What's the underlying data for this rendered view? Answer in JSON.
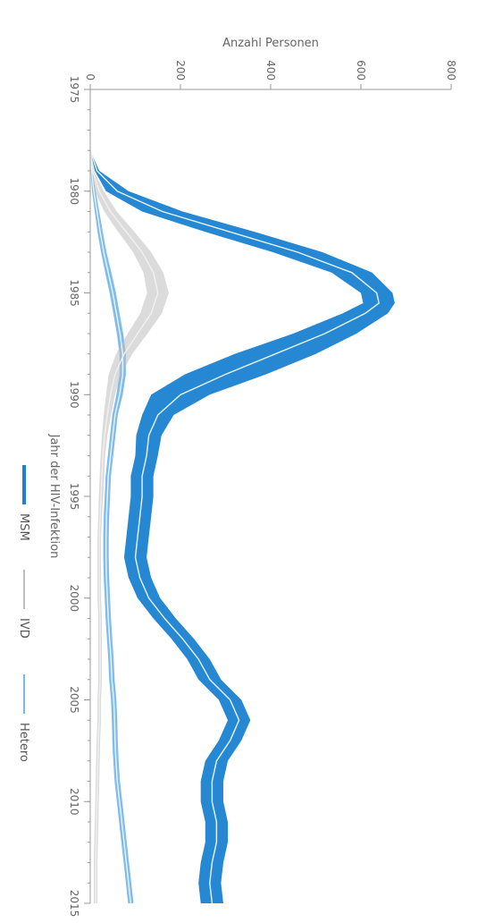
{
  "chart_data": {
    "type": "line",
    "orientation": "rotated-90",
    "xlabel": "Jahr der HIV-Infektion",
    "ylabel": "Anzahl Personen",
    "xlim": [
      1975,
      2015
    ],
    "ylim": [
      0,
      800
    ],
    "x_ticks": [
      "1975",
      "1980",
      "1985",
      "1990",
      "1995",
      "2000",
      "2005",
      "2010",
      "2015"
    ],
    "y_ticks": [
      "0",
      "200",
      "400",
      "600",
      "800"
    ],
    "colors": {
      "MSM": "#1a82d1",
      "IVD": "#bdbdbd",
      "Hetero": "#7ab8ea"
    },
    "series": [
      {
        "name": "MSM",
        "x": [
          1978,
          1979,
          1980,
          1981,
          1982,
          1983,
          1984,
          1985,
          1985.5,
          1986,
          1987,
          1988,
          1989,
          1990,
          1991,
          1992,
          1993,
          1994,
          1995,
          1996,
          1997,
          1998,
          1999,
          2000,
          2001,
          2002,
          2003,
          2004,
          2005,
          2006,
          2007,
          2008,
          2009,
          2010,
          2011,
          2012,
          2013,
          2014,
          2015
        ],
        "y": [
          0,
          15,
          60,
          160,
          310,
          460,
          580,
          635,
          640,
          610,
          520,
          410,
          300,
          200,
          150,
          130,
          125,
          115,
          115,
          110,
          105,
          100,
          110,
          130,
          165,
          205,
          240,
          265,
          310,
          330,
          310,
          280,
          270,
          270,
          280,
          280,
          270,
          265,
          270
        ],
        "band": [
          0,
          5,
          25,
          45,
          55,
          55,
          45,
          35,
          35,
          50,
          70,
          90,
          90,
          65,
          35,
          28,
          25,
          25,
          25,
          25,
          25,
          25,
          25,
          25,
          25,
          25,
          25,
          25,
          25,
          25,
          25,
          25,
          25,
          25,
          25,
          25,
          25,
          25,
          25
        ]
      },
      {
        "name": "IVD",
        "x": [
          1978,
          1979,
          1980,
          1981,
          1982,
          1983,
          1984,
          1985,
          1986,
          1987,
          1988,
          1989,
          1990,
          1991,
          1992,
          1993,
          1994,
          1995,
          1996,
          1997,
          1998,
          1999,
          2000,
          2001,
          2002,
          2003,
          2004,
          2005,
          2006,
          2007,
          2008,
          2009,
          2010,
          2011,
          2012,
          2013,
          2014,
          2015
        ],
        "y": [
          0,
          5,
          20,
          45,
          80,
          115,
          140,
          150,
          135,
          105,
          75,
          55,
          45,
          38,
          32,
          28,
          26,
          24,
          22,
          20,
          20,
          20,
          20,
          22,
          22,
          22,
          22,
          20,
          20,
          18,
          17,
          16,
          15,
          14,
          13,
          12,
          12,
          12
        ],
        "band": [
          0,
          3,
          10,
          14,
          18,
          20,
          22,
          24,
          24,
          22,
          18,
          14,
          10,
          8,
          6,
          5,
          5,
          5,
          4,
          4,
          4,
          4,
          4,
          4,
          4,
          4,
          4,
          4,
          4,
          4,
          4,
          4,
          4,
          4,
          4,
          4,
          4,
          4
        ]
      },
      {
        "name": "Hetero",
        "x": [
          1978,
          1979,
          1980,
          1981,
          1982,
          1983,
          1984,
          1985,
          1986,
          1987,
          1988,
          1989,
          1990,
          1991,
          1992,
          1993,
          1994,
          1995,
          1996,
          1997,
          1998,
          1999,
          2000,
          2001,
          2002,
          2003,
          2004,
          2005,
          2006,
          2007,
          2008,
          2009,
          2010,
          2011,
          2012,
          2013,
          2014,
          2015
        ],
        "y": [
          0,
          3,
          8,
          15,
          22,
          30,
          40,
          50,
          58,
          66,
          72,
          72,
          65,
          55,
          50,
          45,
          40,
          38,
          36,
          35,
          35,
          36,
          38,
          40,
          43,
          46,
          48,
          52,
          54,
          55,
          57,
          60,
          65,
          70,
          75,
          80,
          85,
          90
        ],
        "band": [
          0,
          2,
          4,
          5,
          6,
          6,
          7,
          7,
          7,
          7,
          7,
          7,
          7,
          6,
          6,
          6,
          6,
          6,
          6,
          6,
          6,
          6,
          6,
          6,
          6,
          6,
          6,
          6,
          6,
          6,
          6,
          6,
          6,
          6,
          6,
          6,
          6,
          6
        ]
      }
    ],
    "legend": [
      "MSM",
      "IVD",
      "Hetero"
    ],
    "legend_position": "right",
    "grid": false
  }
}
